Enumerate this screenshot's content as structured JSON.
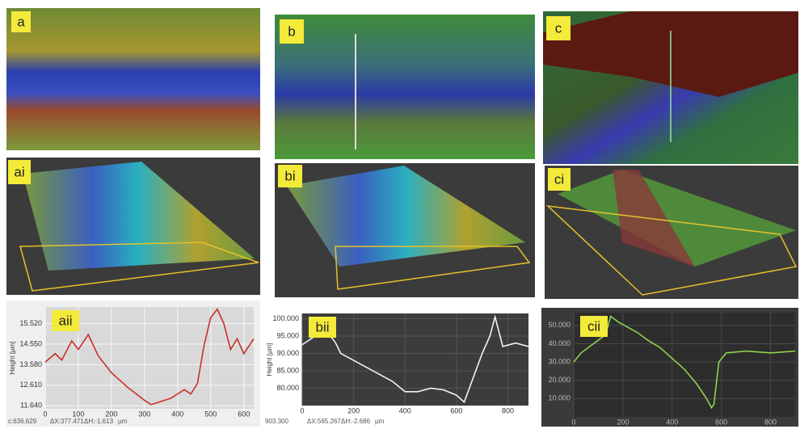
{
  "panel_labels": [
    "a",
    "b",
    "c",
    "ai",
    "bi",
    "ci"
  ],
  "chart_data": [
    {
      "type": "line",
      "label": "aii",
      "y_label": "Height [µm]",
      "footer": [
        "c:636.629",
        "ΔX:377.471",
        "ΔH:-1.613",
        "µm"
      ],
      "xlim": [
        0,
        630
      ],
      "ylim": [
        11.5,
        16.3
      ],
      "xticks": [
        0,
        100,
        200,
        300,
        400,
        500,
        600
      ],
      "yticks": [
        {
          "value": 11.64,
          "label": "11.640"
        },
        {
          "value": 12.61,
          "label": "12.610"
        },
        {
          "value": 13.58,
          "label": "13.580"
        },
        {
          "value": 14.55,
          "label": "14.550"
        },
        {
          "value": 15.52,
          "label": "15.520"
        }
      ],
      "grid": true,
      "series": [
        {
          "color": "#c9302a",
          "x": [
            0,
            30,
            50,
            80,
            100,
            130,
            160,
            200,
            250,
            300,
            320,
            380,
            420,
            440,
            460,
            480,
            500,
            520,
            540,
            560,
            580,
            600,
            630
          ],
          "values": [
            13.7,
            14.1,
            13.8,
            14.7,
            14.3,
            15.0,
            14.0,
            13.2,
            12.5,
            11.9,
            11.7,
            12.0,
            12.4,
            12.2,
            12.7,
            14.5,
            15.8,
            16.2,
            15.5,
            14.3,
            14.8,
            14.1,
            14.8
          ]
        }
      ]
    },
    {
      "type": "line",
      "label": "bii",
      "y_label": "Height [µm]",
      "footer": [
        "903.300",
        "ΔX:565.267",
        "ΔH:-2.686",
        "µm"
      ],
      "xlim": [
        0,
        880
      ],
      "ylim": [
        75,
        101.5
      ],
      "xticks": [
        0,
        200,
        400,
        600,
        800
      ],
      "yticks": [
        {
          "value": 80,
          "label": "80.000"
        },
        {
          "value": 85,
          "label": "85.000"
        },
        {
          "value": 90,
          "label": "90.000"
        },
        {
          "value": 95,
          "label": "95.000"
        },
        {
          "value": 100,
          "label": "100.000"
        }
      ],
      "grid": true,
      "series": [
        {
          "color": "#f2f2f2",
          "x": [
            0,
            50,
            100,
            130,
            150,
            200,
            250,
            300,
            350,
            400,
            450,
            500,
            550,
            600,
            630,
            660,
            700,
            730,
            750,
            780,
            830,
            880
          ],
          "values": [
            92.5,
            95,
            96,
            93,
            90,
            88,
            86,
            84,
            82,
            79,
            79,
            80,
            79.5,
            78,
            76,
            82,
            90,
            95,
            100.5,
            92,
            93,
            92
          ]
        }
      ]
    },
    {
      "type": "line",
      "label": "cii",
      "xlim": [
        0,
        900
      ],
      "ylim": [
        0,
        57
      ],
      "xticks": [
        0,
        200,
        400,
        600,
        800
      ],
      "yticks": [
        {
          "value": 10,
          "label": "10.000"
        },
        {
          "value": 20,
          "label": "20.000"
        },
        {
          "value": 30,
          "label": "30.000"
        },
        {
          "value": 40,
          "label": "40.000"
        },
        {
          "value": 50,
          "label": "50.000"
        }
      ],
      "grid": true,
      "series": [
        {
          "color": "#8fd14f",
          "x": [
            0,
            30,
            60,
            100,
            130,
            150,
            180,
            220,
            260,
            300,
            350,
            400,
            450,
            500,
            540,
            560,
            570,
            590,
            620,
            700,
            800,
            900
          ],
          "values": [
            30,
            35,
            38,
            42,
            45,
            55,
            52,
            49,
            46,
            42,
            38,
            32,
            26,
            18,
            10,
            5,
            7,
            30,
            35,
            36,
            35,
            36
          ]
        }
      ]
    }
  ]
}
